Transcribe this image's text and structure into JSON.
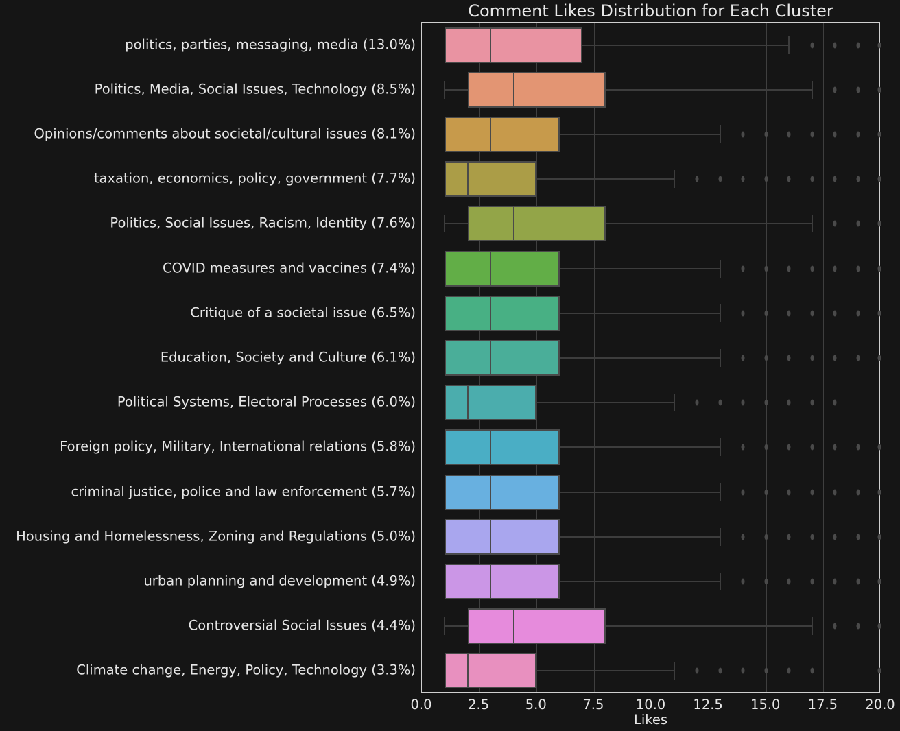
{
  "chart_data": {
    "type": "boxplot",
    "orientation": "horizontal",
    "title": "Comment Likes Distribution for Each Cluster",
    "xlabel": "Likes",
    "ylabel": "",
    "xlim": [
      0,
      20
    ],
    "xticks": [
      "0.0",
      "2.5",
      "5.0",
      "7.5",
      "10.0",
      "12.5",
      "15.0",
      "17.5",
      "20.0"
    ],
    "grid": "vertical",
    "background": "#151515",
    "categories": [
      "politics, parties, messaging, media (13.0%)",
      "Politics, Media, Social Issues, Technology (8.5%)",
      "Opinions/comments about societal/cultural issues (8.1%)",
      "taxation, economics, policy, government (7.7%)",
      "Politics, Social Issues, Racism, Identity (7.6%)",
      "COVID measures and vaccines (7.4%)",
      "Critique of a societal issue (6.5%)",
      "Education, Society and Culture (6.1%)",
      "Political Systems, Electoral Processes (6.0%)",
      "Foreign policy, Military, International relations (5.8%)",
      "criminal justice, police and law enforcement (5.7%)",
      "Housing and Homelessness, Zoning and Regulations (5.0%)",
      "urban planning and development (4.9%)",
      "Controversial Social Issues (4.4%)",
      "Climate change, Energy, Policy, Technology (3.3%)"
    ],
    "series": [
      {
        "name": "politics, parties, messaging, media (13.0%)",
        "whislo": 1,
        "q1": 1,
        "med": 3,
        "q3": 7,
        "whishi": 16,
        "fliers": [
          17,
          18,
          19,
          20
        ],
        "color": "#e993a2"
      },
      {
        "name": "Politics, Media, Social Issues, Technology (8.5%)",
        "whislo": 1,
        "q1": 2,
        "med": 4,
        "q3": 8,
        "whishi": 17,
        "fliers": [
          18,
          19,
          20
        ],
        "color": "#e39573"
      },
      {
        "name": "Opinions/comments about societal/cultural issues (8.1%)",
        "whislo": 1,
        "q1": 1,
        "med": 3,
        "q3": 6,
        "whishi": 13,
        "fliers": [
          14,
          15,
          16,
          17,
          18,
          19,
          20
        ],
        "color": "#c79a4b"
      },
      {
        "name": "taxation, economics, policy, government (7.7%)",
        "whislo": 1,
        "q1": 1,
        "med": 2,
        "q3": 5,
        "whishi": 11,
        "fliers": [
          12,
          13,
          14,
          15,
          16,
          17,
          18,
          19,
          20
        ],
        "color": "#ab9d47"
      },
      {
        "name": "Politics, Social Issues, Racism, Identity (7.6%)",
        "whislo": 1,
        "q1": 2,
        "med": 4,
        "q3": 8,
        "whishi": 17,
        "fliers": [
          18,
          19,
          20
        ],
        "color": "#93a548"
      },
      {
        "name": "COVID measures and vaccines (7.4%)",
        "whislo": 1,
        "q1": 1,
        "med": 3,
        "q3": 6,
        "whishi": 13,
        "fliers": [
          14,
          15,
          16,
          17,
          18,
          19,
          20
        ],
        "color": "#62ae47"
      },
      {
        "name": "Critique of a societal issue (6.5%)",
        "whislo": 1,
        "q1": 1,
        "med": 3,
        "q3": 6,
        "whishi": 13,
        "fliers": [
          14,
          15,
          16,
          17,
          18,
          19,
          20
        ],
        "color": "#48b084"
      },
      {
        "name": "Education, Society and Culture (6.1%)",
        "whislo": 1,
        "q1": 1,
        "med": 3,
        "q3": 6,
        "whishi": 13,
        "fliers": [
          14,
          15,
          16,
          17,
          18,
          19,
          20
        ],
        "color": "#4aae99"
      },
      {
        "name": "Political Systems, Electoral Processes (6.0%)",
        "whislo": 1,
        "q1": 1,
        "med": 2,
        "q3": 5,
        "whishi": 11,
        "fliers": [
          12,
          13,
          14,
          15,
          16,
          17,
          18
        ],
        "color": "#4badad"
      },
      {
        "name": "Foreign policy, Military, International relations (5.8%)",
        "whislo": 1,
        "q1": 1,
        "med": 3,
        "q3": 6,
        "whishi": 13,
        "fliers": [
          14,
          15,
          16,
          17,
          18,
          19,
          20
        ],
        "color": "#4aaec5"
      },
      {
        "name": "criminal justice, police and law enforcement (5.7%)",
        "whislo": 1,
        "q1": 1,
        "med": 3,
        "q3": 6,
        "whishi": 13,
        "fliers": [
          14,
          15,
          16,
          17,
          18,
          19,
          20
        ],
        "color": "#68b0e0"
      },
      {
        "name": "Housing and Homelessness, Zoning and Regulations (5.0%)",
        "whislo": 1,
        "q1": 1,
        "med": 3,
        "q3": 6,
        "whishi": 13,
        "fliers": [
          14,
          15,
          16,
          17,
          18,
          19,
          20
        ],
        "color": "#a9a6ee"
      },
      {
        "name": "urban planning and development (4.9%)",
        "whislo": 1,
        "q1": 1,
        "med": 3,
        "q3": 6,
        "whishi": 13,
        "fliers": [
          14,
          15,
          16,
          17,
          18,
          19,
          20
        ],
        "color": "#cb96e6"
      },
      {
        "name": "Controversial Social Issues (4.4%)",
        "whislo": 1,
        "q1": 2,
        "med": 4,
        "q3": 8,
        "whishi": 17,
        "fliers": [
          18,
          19,
          20
        ],
        "color": "#e68bdc"
      },
      {
        "name": "Climate change, Energy, Policy, Technology (3.3%)",
        "whislo": 1,
        "q1": 1,
        "med": 2,
        "q3": 5,
        "whishi": 11,
        "fliers": [
          12,
          13,
          14,
          15,
          16,
          17,
          20
        ],
        "color": "#e890bf"
      }
    ]
  }
}
